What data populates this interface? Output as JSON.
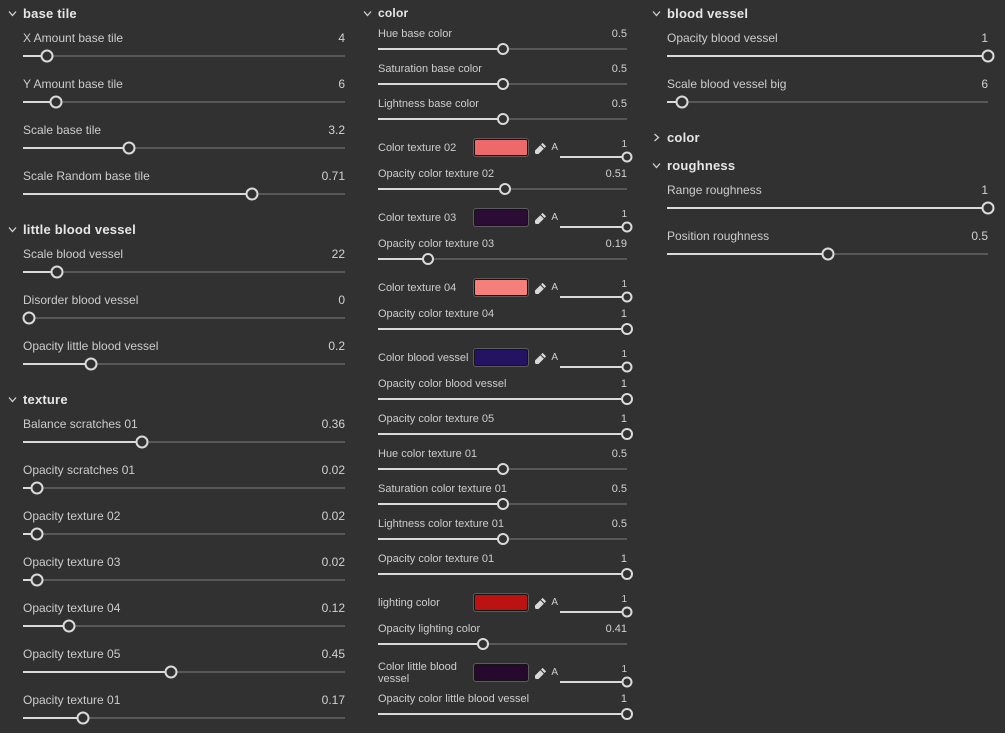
{
  "theme": {
    "background": "#313131",
    "label_text": "#cdcdcd",
    "header_text": "#e6e6e6",
    "slider_track": "#585858",
    "slider_fill": "#dadada"
  },
  "columns": [
    {
      "name": "left",
      "sections": [
        {
          "title": "base tile",
          "collapsed": false,
          "params": [
            {
              "type": "slider",
              "label": "X Amount base tile",
              "value": "4",
              "pct": 7.5
            },
            {
              "type": "slider",
              "label": "Y Amount base tile",
              "value": "6",
              "pct": 10.2
            },
            {
              "type": "slider",
              "label": "Scale base tile",
              "value": "3.2",
              "pct": 33
            },
            {
              "type": "slider",
              "label": "Scale Random base tile",
              "value": "0.71",
              "pct": 71
            }
          ]
        },
        {
          "title": "little blood vessel",
          "collapsed": false,
          "params": [
            {
              "type": "slider",
              "label": "Scale blood vessel",
              "value": "22",
              "pct": 10.5
            },
            {
              "type": "slider",
              "label": "Disorder blood vessel",
              "value": "0",
              "pct": 2
            },
            {
              "type": "slider",
              "label": "Opacity little blood vessel",
              "value": "0.2",
              "pct": 21
            }
          ]
        },
        {
          "title": "texture",
          "collapsed": false,
          "params": [
            {
              "type": "slider",
              "label": "Balance scratches 01",
              "value": "0.36",
              "pct": 37
            },
            {
              "type": "slider",
              "label": "Opacity scratches 01",
              "value": "0.02",
              "pct": 4.3
            },
            {
              "type": "slider",
              "label": "Opacity texture 02",
              "value": "0.02",
              "pct": 4.3
            },
            {
              "type": "slider",
              "label": "Opacity texture 03",
              "value": "0.02",
              "pct": 4.3
            },
            {
              "type": "slider",
              "label": "Opacity texture 04",
              "value": "0.12",
              "pct": 14.3
            },
            {
              "type": "slider",
              "label": "Opacity texture 05",
              "value": "0.45",
              "pct": 46
            },
            {
              "type": "slider",
              "label": "Opacity texture 01",
              "value": "0.17",
              "pct": 18.6
            }
          ]
        }
      ]
    },
    {
      "name": "middle",
      "sections": [
        {
          "title": "color",
          "collapsed": false,
          "params": [
            {
              "type": "slider",
              "label": "Hue base color",
              "value": "0.5",
              "pct": 50
            },
            {
              "type": "slider",
              "label": "Saturation base color",
              "value": "0.5",
              "pct": 50
            },
            {
              "type": "slider",
              "label": "Lightness base color",
              "value": "0.5",
              "pct": 50
            },
            {
              "type": "color",
              "label": "Color texture 02",
              "swatch": "#ee6a6a",
              "alpha_label": "A",
              "alpha_value": "1",
              "alpha_pct": 100
            },
            {
              "type": "slider",
              "label": "Opacity color texture 02",
              "value": "0.51",
              "pct": 51
            },
            {
              "type": "color",
              "label": "Color texture 03",
              "swatch": "#2a0c34",
              "alpha_label": "A",
              "alpha_value": "1",
              "alpha_pct": 100
            },
            {
              "type": "slider",
              "label": "Opacity color texture 03",
              "value": "0.19",
              "pct": 20
            },
            {
              "type": "color",
              "label": "Color texture 04",
              "swatch": "#f5807b",
              "alpha_label": "A",
              "alpha_value": "1",
              "alpha_pct": 100
            },
            {
              "type": "slider",
              "label": "Opacity color texture 04",
              "value": "1",
              "pct": 100
            },
            {
              "type": "color",
              "label": "Color blood vessel",
              "swatch": "#241263",
              "alpha_label": "A",
              "alpha_value": "1",
              "alpha_pct": 100
            },
            {
              "type": "slider",
              "label": "Opacity color blood vessel",
              "value": "1",
              "pct": 100
            },
            {
              "type": "slider",
              "label": "Opacity color texture 05",
              "value": "1",
              "pct": 100
            },
            {
              "type": "slider",
              "label": "Hue color texture 01",
              "value": "0.5",
              "pct": 50
            },
            {
              "type": "slider",
              "label": "Saturation color texture 01",
              "value": "0.5",
              "pct": 50
            },
            {
              "type": "slider",
              "label": "Lightness color texture 01",
              "value": "0.5",
              "pct": 50
            },
            {
              "type": "slider",
              "label": "Opacity color texture 01",
              "value": "1",
              "pct": 100
            },
            {
              "type": "color",
              "label": "lighting color",
              "swatch": "#bd1212",
              "alpha_label": "A",
              "alpha_value": "1",
              "alpha_pct": 100
            },
            {
              "type": "slider",
              "label": "Opacity lighting color",
              "value": "0.41",
              "pct": 42
            },
            {
              "type": "color",
              "label": "Color little blood vessel",
              "swatch": "#27082f",
              "alpha_label": "A",
              "alpha_value": "1",
              "alpha_pct": 100
            },
            {
              "type": "slider",
              "label": "Opacity color little blood vessel",
              "value": "1",
              "pct": 100
            }
          ]
        }
      ]
    },
    {
      "name": "right",
      "sections": [
        {
          "title": "blood vessel",
          "collapsed": false,
          "params": [
            {
              "type": "slider",
              "label": "Opacity blood vessel",
              "value": "1",
              "pct": 100
            },
            {
              "type": "slider",
              "label": "Scale blood vessel big",
              "value": "6",
              "pct": 4.7
            }
          ]
        },
        {
          "title": "color",
          "collapsed": true,
          "params": []
        },
        {
          "title": "roughness",
          "collapsed": false,
          "params": [
            {
              "type": "slider",
              "label": "Range roughness",
              "value": "1",
              "pct": 100
            },
            {
              "type": "slider",
              "label": "Position roughness",
              "value": "0.5",
              "pct": 50
            }
          ]
        }
      ]
    }
  ]
}
